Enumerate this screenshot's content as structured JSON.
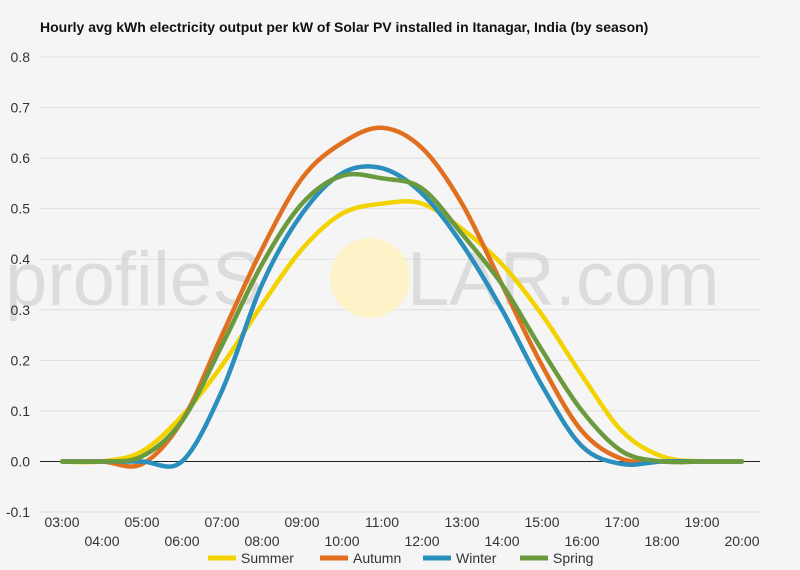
{
  "chart_data": {
    "type": "line",
    "title": "Hourly avg kWh electricity output per kW of Solar PV installed in Itanagar, India (by season)",
    "xlabel": "",
    "ylabel": "",
    "ylim": [
      -0.1,
      0.8
    ],
    "yticks": [
      -0.1,
      0.0,
      0.1,
      0.2,
      0.3,
      0.4,
      0.5,
      0.6,
      0.7,
      0.8
    ],
    "ytick_labels": [
      "-0.1",
      "0.0",
      "0.1",
      "0.2",
      "0.3",
      "0.4",
      "0.5",
      "0.6",
      "0.7",
      "0.8"
    ],
    "x": [
      "03:00",
      "04:00",
      "05:00",
      "06:00",
      "07:00",
      "08:00",
      "09:00",
      "10:00",
      "11:00",
      "12:00",
      "13:00",
      "14:00",
      "15:00",
      "16:00",
      "17:00",
      "18:00",
      "19:00",
      "20:00"
    ],
    "grid": true,
    "legend_position": "bottom",
    "series": [
      {
        "name": "Summer",
        "color": "#f2d300",
        "values": [
          0.0,
          0.0,
          0.02,
          0.09,
          0.19,
          0.31,
          0.42,
          0.49,
          0.51,
          0.51,
          0.46,
          0.39,
          0.29,
          0.17,
          0.06,
          0.01,
          0.0,
          0.0
        ]
      },
      {
        "name": "Autumn",
        "color": "#e07020",
        "values": [
          0.0,
          0.0,
          -0.005,
          0.08,
          0.25,
          0.42,
          0.56,
          0.63,
          0.66,
          0.62,
          0.51,
          0.35,
          0.19,
          0.06,
          0.005,
          0.0,
          0.0,
          0.0
        ]
      },
      {
        "name": "Winter",
        "color": "#2a8fbd",
        "values": [
          0.0,
          0.0,
          0.0,
          0.0,
          0.14,
          0.35,
          0.49,
          0.57,
          0.58,
          0.53,
          0.43,
          0.3,
          0.15,
          0.03,
          -0.005,
          0.0,
          0.0,
          0.0
        ]
      },
      {
        "name": "Spring",
        "color": "#6b9a3e",
        "values": [
          0.0,
          0.0,
          0.01,
          0.08,
          0.23,
          0.39,
          0.51,
          0.565,
          0.56,
          0.54,
          0.45,
          0.35,
          0.22,
          0.1,
          0.02,
          0.0,
          0.0,
          0.0
        ]
      }
    ]
  },
  "watermark": {
    "left": "profileS",
    "right": "LAR.com"
  }
}
